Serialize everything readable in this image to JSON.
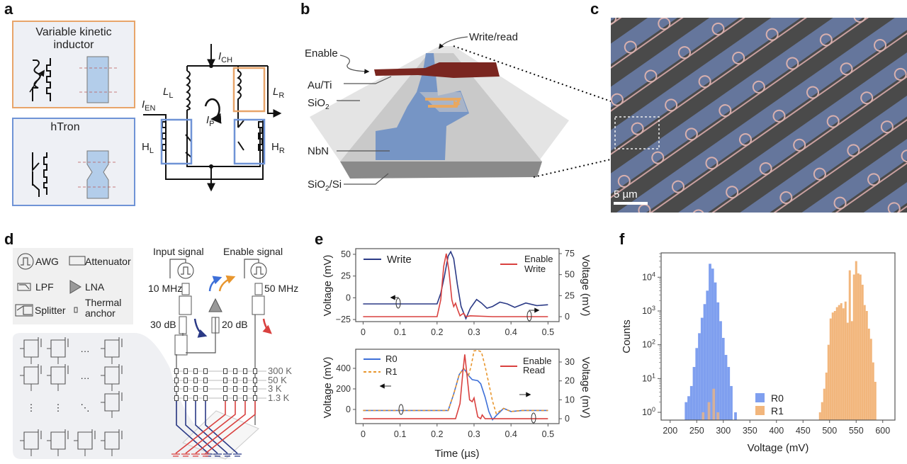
{
  "panels": {
    "a": "a",
    "b": "b",
    "c": "c",
    "d": "d",
    "e": "e",
    "f": "f"
  },
  "panel_a": {
    "box1_title_1": "Variable kinetic",
    "box1_title_2": "inductor",
    "box2_title": "hTron",
    "box1_color": "#e8a56a",
    "box2_color": "#6f93d6",
    "labels": {
      "I_CH": {
        "main": "I",
        "sub": "CH"
      },
      "I_EN": {
        "main": "I",
        "sub": "EN"
      },
      "I_P": {
        "main": "I",
        "sub": "P"
      },
      "L_L": {
        "main": "L",
        "sub": "L"
      },
      "L_R": {
        "main": "L",
        "sub": "R"
      },
      "H_L": {
        "main": "H",
        "sub": "L"
      },
      "H_R": {
        "main": "H",
        "sub": "R"
      }
    }
  },
  "panel_b": {
    "write_read": "Write/read",
    "enable": "Enable",
    "au_ti": "Au/Ti",
    "sio2": {
      "main": "SiO",
      "sub": "2"
    },
    "nbn": "NbN",
    "sio2_si": {
      "main": "SiO",
      "sub": "2",
      "rest": "/Si"
    }
  },
  "panel_c": {
    "scale_bar": "5 µm"
  },
  "panel_d": {
    "legend": {
      "awg": "AWG",
      "attenuator": "Attenuator",
      "lpf": "LPF",
      "lna": "LNA",
      "splitter": "Splitter",
      "thermal_1": "Thermal",
      "thermal_2": "anchor"
    },
    "input_signal": "Input signal",
    "enable_signal": "Enable signal",
    "freq_in": "10 MHz",
    "freq_en": "50 MHz",
    "att_30": "30 dB",
    "att_20": "20 dB",
    "stages": [
      "300 K",
      "50 K",
      "3 K",
      "1.3 K"
    ],
    "dots_h": "···",
    "dots_v": "⋮",
    "dots_d": "⋱"
  },
  "chart_data": [
    {
      "type": "line",
      "panel": "e-top",
      "xlabel": "",
      "ylabel_left": "Voltage (mV)",
      "ylabel_right": "Voltage (mV)",
      "xticks": [
        0,
        0.1,
        0.2,
        0.3,
        0.4,
        0.5
      ],
      "yticks_left": [
        -25,
        0,
        25,
        50
      ],
      "yticks_right": [
        0,
        25,
        50,
        75
      ],
      "xlim": [
        -0.02,
        0.53
      ],
      "ylim_left": [
        -27.4,
        56.5
      ],
      "ylim_right": [
        -5.9,
        80.9
      ],
      "series": [
        {
          "name": "Write",
          "axis": "left",
          "color": "#2b3a86",
          "dash": false,
          "x": [
            0,
            0.05,
            0.1,
            0.15,
            0.2,
            0.21,
            0.22,
            0.23,
            0.237,
            0.245,
            0.255,
            0.265,
            0.278,
            0.29,
            0.307,
            0.32,
            0.335,
            0.35,
            0.37,
            0.39,
            0.41,
            0.44,
            0.47,
            0.5
          ],
          "y": [
            -7,
            -7,
            -7,
            -7,
            -7,
            5,
            25,
            48,
            53,
            45,
            15,
            -10,
            -24,
            -12,
            -2,
            -6,
            -12,
            -10,
            -5,
            -7,
            -11,
            -6,
            -9,
            -8
          ]
        },
        {
          "name": "Enable Write",
          "axis": "right",
          "color": "#d9413f",
          "dash": false,
          "x": [
            0,
            0.1,
            0.2,
            0.21,
            0.218,
            0.225,
            0.232,
            0.24,
            0.245,
            0.25,
            0.256,
            0.262,
            0.268,
            0.272,
            0.278,
            0.29,
            0.35,
            0.5
          ],
          "y": [
            0,
            0,
            0,
            20,
            60,
            75,
            55,
            20,
            12,
            16,
            8,
            1,
            3,
            4,
            0,
            1,
            0,
            0
          ]
        }
      ],
      "legend_left": "Write",
      "legend_right_1": "Enable",
      "legend_right_2": "Write"
    },
    {
      "type": "line",
      "panel": "e-bottom",
      "xlabel": "Time (µs)",
      "ylabel_left": "Voltage (mV)",
      "ylabel_right": "Voltage (mV)",
      "xticks": [
        0,
        0.1,
        0.2,
        0.3,
        0.4,
        0.5
      ],
      "yticks_left": [
        0,
        200,
        400
      ],
      "yticks_right": [
        0,
        10,
        20,
        30
      ],
      "xlim": [
        -0.02,
        0.53
      ],
      "ylim_left": [
        -138,
        586
      ],
      "ylim_right": [
        -2.6,
        36.75
      ],
      "series": [
        {
          "name": "R0",
          "axis": "left",
          "color": "#3d6fd8",
          "dash": false,
          "x": [
            0,
            0.1,
            0.2,
            0.23,
            0.245,
            0.26,
            0.272,
            0.285,
            0.295,
            0.31,
            0.318,
            0.33,
            0.34,
            0.35,
            0.36,
            0.38,
            0.4,
            0.43,
            0.5
          ],
          "y": [
            -10,
            -10,
            -10,
            -10,
            150,
            340,
            400,
            330,
            290,
            280,
            250,
            120,
            -20,
            -100,
            -60,
            10,
            -20,
            -10,
            -10
          ]
        },
        {
          "name": "R1",
          "axis": "left",
          "color": "#e8962e",
          "dash": true,
          "x": [
            0,
            0.1,
            0.2,
            0.23,
            0.245,
            0.26,
            0.272,
            0.285,
            0.292,
            0.3,
            0.31,
            0.32,
            0.33,
            0.34,
            0.35,
            0.36,
            0.38,
            0.4,
            0.43,
            0.5
          ],
          "y": [
            -10,
            -10,
            -10,
            -10,
            150,
            340,
            400,
            330,
            420,
            570,
            575,
            560,
            420,
            250,
            80,
            -40,
            10,
            -20,
            -10,
            -10
          ]
        },
        {
          "name": "Enable Read",
          "axis": "right",
          "color": "#d9413f",
          "dash": false,
          "x": [
            0,
            0.1,
            0.2,
            0.25,
            0.262,
            0.27,
            0.275,
            0.28,
            0.288,
            0.295,
            0.3,
            0.305,
            0.31,
            0.318,
            0.322,
            0.33,
            0.4,
            0.5
          ],
          "y": [
            0,
            0,
            0,
            0,
            8,
            25,
            34,
            25,
            10,
            9,
            11,
            6,
            1,
            0,
            2,
            0,
            0,
            0
          ]
        }
      ],
      "legend_left_1": "R0",
      "legend_left_2": "R1",
      "legend_right_1": "Enable",
      "legend_right_2": "Read"
    },
    {
      "type": "bar",
      "panel": "f",
      "xlabel": "Voltage (mV)",
      "ylabel": "Counts",
      "scale_y": "log",
      "xticks": [
        200,
        250,
        300,
        350,
        400,
        450,
        500,
        550,
        600
      ],
      "yticks": [
        "10^0",
        "10^1",
        "10^2",
        "10^3",
        "10^4"
      ],
      "ytick_labels": [
        {
          "b": "10",
          "e": "0"
        },
        {
          "b": "10",
          "e": "1"
        },
        {
          "b": "10",
          "e": "2"
        },
        {
          "b": "10",
          "e": "3"
        },
        {
          "b": "10",
          "e": "4"
        }
      ],
      "xlim": [
        183,
        623
      ],
      "ylim_log10": [
        -0.23,
        4.72
      ],
      "legend": "bottom-center",
      "series": [
        {
          "name": "R0",
          "color": "#7f9fef",
          "x": [
            230,
            235,
            240,
            245,
            250,
            255,
            260,
            265,
            270,
            275,
            280,
            285,
            290,
            295,
            300,
            305,
            310,
            315,
            323
          ],
          "counts": [
            2,
            3,
            6,
            22,
            80,
            220,
            630,
            1600,
            4000,
            25000,
            18000,
            7000,
            1800,
            500,
            160,
            50,
            22,
            6,
            1
          ]
        },
        {
          "name": "R1",
          "color": "#f2b67c",
          "x": [
            262,
            273,
            282,
            290,
            482,
            486,
            490,
            494,
            498,
            502,
            506,
            510,
            514,
            518,
            522,
            526,
            530,
            534,
            538,
            542,
            546,
            550,
            554,
            558,
            562,
            566,
            570,
            574,
            578,
            582,
            586
          ],
          "counts": [
            1,
            2,
            5,
            1,
            1,
            2,
            5,
            15,
            100,
            600,
            900,
            1000,
            1300,
            1500,
            1700,
            1200,
            1900,
            450,
            16000,
            500,
            12000,
            30000,
            13000,
            12000,
            6000,
            1500,
            1000,
            300,
            150,
            30,
            8
          ]
        }
      ],
      "legend_labels": [
        "R0",
        "R1"
      ]
    }
  ]
}
